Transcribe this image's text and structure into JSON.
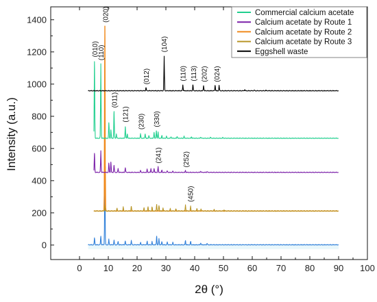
{
  "chart_data": {
    "type": "line",
    "xlabel": "2θ (°)",
    "ylabel": "Intensity (a.u.)",
    "xlim": [
      -10,
      100
    ],
    "ylim": [
      -90,
      1480
    ],
    "xticks": [
      0,
      10,
      20,
      30,
      40,
      50,
      60,
      70,
      80,
      90,
      100
    ],
    "yticks": [
      0,
      200,
      400,
      600,
      800,
      1000,
      1200,
      1400
    ],
    "legend_position": "top-right",
    "series": [
      {
        "name": "Commercial calcium acetate",
        "color": "#1fcf8e",
        "baseline": 662,
        "x_range": [
          5,
          90
        ],
        "peaks": [
          [
            5.2,
            1140
          ],
          [
            7.4,
            1125
          ],
          [
            10.2,
            760
          ],
          [
            10.9,
            715
          ],
          [
            12.0,
            830
          ],
          [
            12.8,
            690
          ],
          [
            15.9,
            735
          ],
          [
            16.6,
            690
          ],
          [
            21.2,
            690
          ],
          [
            22.8,
            690
          ],
          [
            24.1,
            680
          ],
          [
            25.9,
            700
          ],
          [
            26.7,
            710
          ],
          [
            27.3,
            700
          ],
          [
            28.6,
            680
          ],
          [
            30.2,
            676
          ],
          [
            31.8,
            672
          ],
          [
            33.9,
            674
          ],
          [
            36.3,
            675
          ],
          [
            38.9,
            672
          ],
          [
            42.1,
            670
          ],
          [
            45.5,
            668
          ],
          [
            49.8,
            667
          ]
        ]
      },
      {
        "name": "Calcium acetate by Route 1",
        "color": "#7a1fa8",
        "baseline": 450,
        "x_range": [
          5,
          90
        ],
        "peaks": [
          [
            5.2,
            570
          ],
          [
            7.4,
            585
          ],
          [
            10.2,
            510
          ],
          [
            10.9,
            515
          ],
          [
            12.0,
            495
          ],
          [
            13.4,
            475
          ],
          [
            15.9,
            480
          ],
          [
            21.2,
            462
          ],
          [
            23.5,
            470
          ],
          [
            24.8,
            475
          ],
          [
            25.9,
            475
          ],
          [
            27.3,
            485
          ],
          [
            28.6,
            465
          ],
          [
            30.5,
            460
          ],
          [
            32.4,
            458
          ],
          [
            36.8,
            462
          ],
          [
            42.1,
            458
          ],
          [
            44.3,
            456
          ]
        ]
      },
      {
        "name": "Calcium acetate by Route 2",
        "color": "#f08a1c",
        "baseline": 210,
        "x_range": [
          5,
          90
        ],
        "peaks": [
          [
            8.8,
            1360
          ],
          [
            8.95,
            250
          ]
        ]
      },
      {
        "name": "Calcium acetate by Route 3",
        "color": "#b89526",
        "baseline": 210,
        "x_range": [
          5,
          90
        ],
        "peaks": [
          [
            8.8,
            245
          ],
          [
            13.0,
            228
          ],
          [
            15.2,
            235
          ],
          [
            18.0,
            240
          ],
          [
            22.4,
            232
          ],
          [
            23.8,
            238
          ],
          [
            25.2,
            236
          ],
          [
            26.8,
            252
          ],
          [
            27.6,
            245
          ],
          [
            29.0,
            230
          ],
          [
            31.5,
            226
          ],
          [
            33.5,
            224
          ],
          [
            36.8,
            248
          ],
          [
            38.6,
            240
          ],
          [
            40.8,
            226
          ],
          [
            42.2,
            224
          ],
          [
            46.8,
            220
          ],
          [
            50.2,
            218
          ]
        ]
      },
      {
        "name": "Eggshell waste",
        "color": "#000000",
        "baseline": 957,
        "x_range": [
          3,
          90
        ],
        "peaks": [
          [
            23.1,
            978
          ],
          [
            29.4,
            1170
          ],
          [
            35.9,
            995
          ],
          [
            39.4,
            995
          ],
          [
            43.1,
            990
          ],
          [
            47.1,
            992
          ],
          [
            48.5,
            990
          ],
          [
            57.4,
            965
          ],
          [
            60.7,
            962
          ],
          [
            64.7,
            960
          ]
        ]
      },
      {
        "color": "#2f7fd9",
        "baseline": 0,
        "x_range": [
          3,
          90
        ],
        "peaks": [
          [
            5.2,
            45
          ],
          [
            7.4,
            55
          ],
          [
            8.8,
            440
          ],
          [
            10.2,
            35
          ],
          [
            12.0,
            30
          ],
          [
            13.4,
            22
          ],
          [
            15.9,
            25
          ],
          [
            18.0,
            28
          ],
          [
            21.2,
            15
          ],
          [
            23.5,
            22
          ],
          [
            25.2,
            20
          ],
          [
            26.8,
            55
          ],
          [
            27.6,
            40
          ],
          [
            28.6,
            20
          ],
          [
            30.5,
            18
          ],
          [
            32.4,
            16
          ],
          [
            36.8,
            28
          ],
          [
            38.6,
            22
          ],
          [
            42.1,
            12
          ],
          [
            44.3,
            10
          ]
        ]
      }
    ],
    "annotations": [
      {
        "text": "(010)",
        "x": 5.3,
        "y": 1155
      },
      {
        "text": "(110)",
        "x": 7.5,
        "y": 1135
      },
      {
        "text": "(020)",
        "x": 9.0,
        "y": 1370
      },
      {
        "text": "(011)",
        "x": 12.2,
        "y": 840
      },
      {
        "text": "(121)",
        "x": 16.0,
        "y": 750
      },
      {
        "text": "(230)",
        "x": 21.4,
        "y": 705
      },
      {
        "text": "(330)",
        "x": 26.8,
        "y": 720
      },
      {
        "text": "(012)",
        "x": 23.2,
        "y": 985
      },
      {
        "text": "(104)",
        "x": 29.4,
        "y": 1185
      },
      {
        "text": "(110)",
        "x": 36.0,
        "y": 1005
      },
      {
        "text": "(113)",
        "x": 39.6,
        "y": 1005
      },
      {
        "text": "(202)",
        "x": 43.3,
        "y": 1000
      },
      {
        "text": "(024)",
        "x": 47.7,
        "y": 1000
      },
      {
        "text": "(241)",
        "x": 27.4,
        "y": 495
      },
      {
        "text": "(252)",
        "x": 37.0,
        "y": 470
      },
      {
        "text": "(450)",
        "x": 38.6,
        "y": 255
      }
    ]
  }
}
